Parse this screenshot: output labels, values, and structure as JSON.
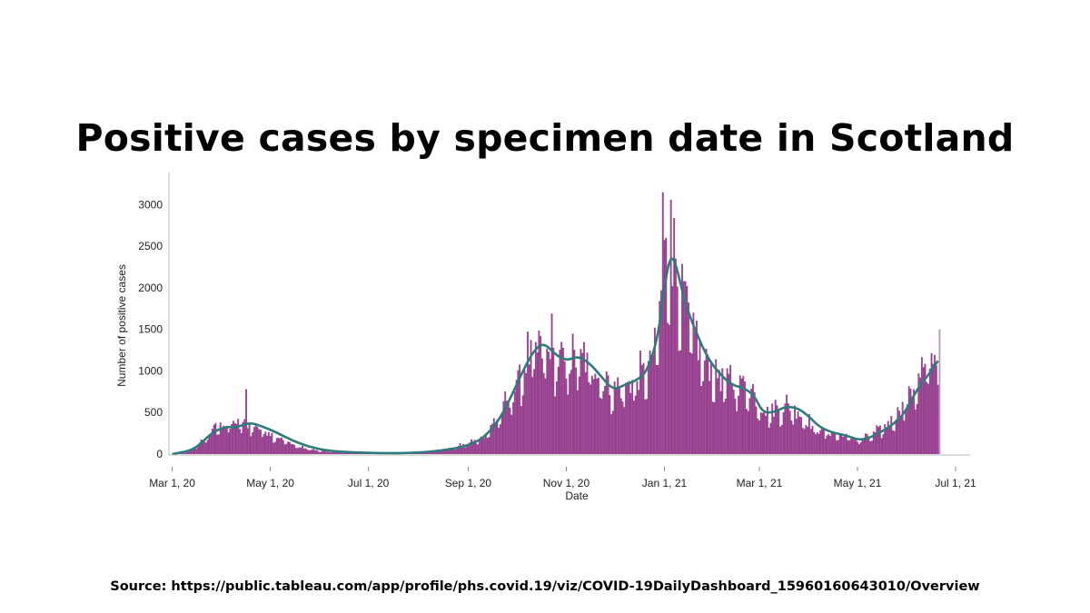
{
  "title": "Positive cases by specimen date in Scotland",
  "source": "Source: https://public.tableau.com/app/profile/phs.covid.19/viz/COVID-19DailyDashboard_15960160643010/Overview",
  "colors": {
    "bars": "#97418f",
    "last_bar": "#b59bc4",
    "avg_line": "#2f7b7b",
    "axis": "#bbbbbb"
  },
  "chart_data": {
    "type": "bar",
    "xlabel": "Date",
    "ylabel": "Number of positive cases",
    "x_start": "2020-02-28",
    "x_end": "2021-07-10",
    "ylim": [
      0,
      3200
    ],
    "yticks": [
      0,
      500,
      1000,
      1500,
      2000,
      2500,
      3000
    ],
    "xticks": [
      {
        "date": "2020-03-01",
        "label": "Mar 1, 20"
      },
      {
        "date": "2020-05-01",
        "label": "May 1, 20"
      },
      {
        "date": "2020-07-01",
        "label": "Jul 1, 20"
      },
      {
        "date": "2020-09-01",
        "label": "Sep 1, 20"
      },
      {
        "date": "2020-11-01",
        "label": "Nov 1, 20"
      },
      {
        "date": "2021-01-01",
        "label": "Jan 1, 21"
      },
      {
        "date": "2021-03-01",
        "label": "Mar 1, 21"
      },
      {
        "date": "2021-05-01",
        "label": "May 1, 21"
      },
      {
        "date": "2021-07-01",
        "label": "Jul 1, 21"
      }
    ],
    "daily_start": "2020-03-01",
    "daily_end": "2021-06-21",
    "daily_anchors": [
      [
        "2020-03-01",
        2
      ],
      [
        "2020-03-10",
        20
      ],
      [
        "2020-03-20",
        150
      ],
      [
        "2020-03-28",
        330
      ],
      [
        "2020-04-05",
        360
      ],
      [
        "2020-04-14",
        380
      ],
      [
        "2020-04-22",
        330
      ],
      [
        "2020-05-01",
        250
      ],
      [
        "2020-05-10",
        160
      ],
      [
        "2020-05-20",
        80
      ],
      [
        "2020-06-01",
        35
      ],
      [
        "2020-06-15",
        20
      ],
      [
        "2020-07-01",
        10
      ],
      [
        "2020-07-20",
        10
      ],
      [
        "2020-08-05",
        30
      ],
      [
        "2020-08-20",
        60
      ],
      [
        "2020-09-01",
        130
      ],
      [
        "2020-09-10",
        200
      ],
      [
        "2020-09-20",
        450
      ],
      [
        "2020-09-30",
        780
      ],
      [
        "2020-10-08",
        1150
      ],
      [
        "2020-10-15",
        1250
      ],
      [
        "2020-10-22",
        1200
      ],
      [
        "2020-10-30",
        1100
      ],
      [
        "2020-11-10",
        1150
      ],
      [
        "2020-11-20",
        1000
      ],
      [
        "2020-11-28",
        800
      ],
      [
        "2020-12-05",
        780
      ],
      [
        "2020-12-15",
        900
      ],
      [
        "2020-12-24",
        1100
      ],
      [
        "2020-12-28",
        1500
      ],
      [
        "2021-01-01",
        2400
      ],
      [
        "2021-01-05",
        2350
      ],
      [
        "2021-01-10",
        2100
      ],
      [
        "2021-01-18",
        1500
      ],
      [
        "2021-01-25",
        1150
      ],
      [
        "2021-02-05",
        900
      ],
      [
        "2021-02-15",
        850
      ],
      [
        "2021-02-22",
        820
      ],
      [
        "2021-03-05",
        500
      ],
      [
        "2021-03-12",
        550
      ],
      [
        "2021-03-20",
        580
      ],
      [
        "2021-03-28",
        450
      ],
      [
        "2021-04-05",
        300
      ],
      [
        "2021-04-15",
        250
      ],
      [
        "2021-04-25",
        210
      ],
      [
        "2021-05-01",
        160
      ],
      [
        "2021-05-10",
        230
      ],
      [
        "2021-05-20",
        360
      ],
      [
        "2021-05-30",
        600
      ],
      [
        "2021-06-08",
        900
      ],
      [
        "2021-06-15",
        1100
      ],
      [
        "2021-06-21",
        1200
      ]
    ],
    "daily_spikes": [
      [
        "2020-04-16",
        780
      ],
      [
        "2020-10-23",
        1690
      ],
      [
        "2020-12-31",
        3150
      ],
      [
        "2021-01-02",
        2600
      ],
      [
        "2021-01-05",
        3060
      ],
      [
        "2021-01-08",
        2350
      ],
      [
        "2021-06-21",
        1500
      ]
    ],
    "seven_day_average": [
      [
        "2020-03-01",
        0
      ],
      [
        "2020-03-15",
        50
      ],
      [
        "2020-03-25",
        250
      ],
      [
        "2020-04-03",
        330
      ],
      [
        "2020-04-10",
        320
      ],
      [
        "2020-04-18",
        380
      ],
      [
        "2020-04-25",
        340
      ],
      [
        "2020-05-05",
        260
      ],
      [
        "2020-05-15",
        160
      ],
      [
        "2020-05-25",
        90
      ],
      [
        "2020-06-05",
        40
      ],
      [
        "2020-06-20",
        22
      ],
      [
        "2020-07-10",
        10
      ],
      [
        "2020-07-30",
        15
      ],
      [
        "2020-08-15",
        40
      ],
      [
        "2020-08-30",
        90
      ],
      [
        "2020-09-10",
        180
      ],
      [
        "2020-09-20",
        400
      ],
      [
        "2020-09-28",
        700
      ],
      [
        "2020-10-05",
        1000
      ],
      [
        "2020-10-12",
        1250
      ],
      [
        "2020-10-18",
        1340
      ],
      [
        "2020-10-25",
        1200
      ],
      [
        "2020-11-01",
        1120
      ],
      [
        "2020-11-08",
        1180
      ],
      [
        "2020-11-15",
        1100
      ],
      [
        "2020-11-22",
        950
      ],
      [
        "2020-11-30",
        770
      ],
      [
        "2020-12-07",
        830
      ],
      [
        "2020-12-14",
        880
      ],
      [
        "2020-12-21",
        980
      ],
      [
        "2020-12-28",
        1400
      ],
      [
        "2021-01-02",
        2150
      ],
      [
        "2021-01-05",
        2380
      ],
      [
        "2021-01-08",
        2300
      ],
      [
        "2021-01-14",
        1800
      ],
      [
        "2021-01-21",
        1450
      ],
      [
        "2021-01-28",
        1150
      ],
      [
        "2021-02-05",
        950
      ],
      [
        "2021-02-12",
        830
      ],
      [
        "2021-02-20",
        790
      ],
      [
        "2021-02-26",
        700
      ],
      [
        "2021-03-03",
        500
      ],
      [
        "2021-03-10",
        500
      ],
      [
        "2021-03-17",
        570
      ],
      [
        "2021-03-24",
        560
      ],
      [
        "2021-03-31",
        470
      ],
      [
        "2021-04-07",
        330
      ],
      [
        "2021-04-15",
        260
      ],
      [
        "2021-04-25",
        220
      ],
      [
        "2021-05-01",
        170
      ],
      [
        "2021-05-08",
        190
      ],
      [
        "2021-05-15",
        260
      ],
      [
        "2021-05-22",
        340
      ],
      [
        "2021-05-30",
        480
      ],
      [
        "2021-06-07",
        780
      ],
      [
        "2021-06-14",
        950
      ],
      [
        "2021-06-20",
        1120
      ]
    ]
  }
}
